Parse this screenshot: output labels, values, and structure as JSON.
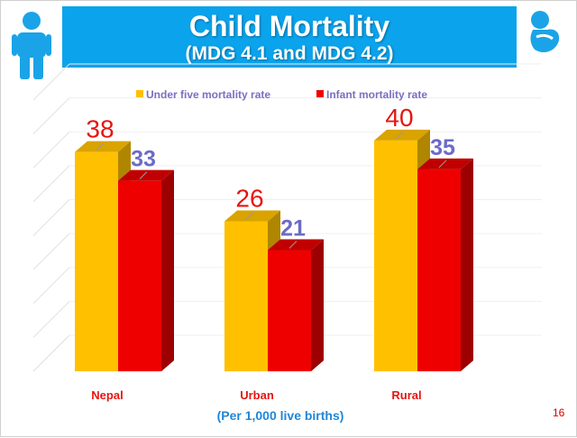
{
  "slide": {
    "title": "Child Mortality",
    "subtitle": "(MDG 4.1  and MDG 4.2)",
    "footnote": "(Per 1,000 live births)",
    "page_number": "16",
    "icons": [
      "child-icon",
      "infant-icon"
    ]
  },
  "chart_data": {
    "type": "bar",
    "title": "Child Mortality",
    "categories": [
      "Nepal",
      "Urban",
      "Rural"
    ],
    "series": [
      {
        "name": "Under five mortality rate",
        "values": [
          38,
          26,
          40
        ],
        "color": "#ffc000",
        "side_color": "#b08600",
        "top_color": "#d9a300",
        "label_color": "#e8140f"
      },
      {
        "name": "Infant mortality rate",
        "values": [
          33,
          21,
          35
        ],
        "color": "#ee0000",
        "side_color": "#9c0000",
        "top_color": "#c00000",
        "label_color": "#6b6bc8"
      }
    ],
    "xlabel": "(Per 1,000 live births)",
    "ylabel": "",
    "ylim": [
      0,
      47
    ],
    "grid": true,
    "legend": "top"
  },
  "colors": {
    "banner": "#0aa3ec",
    "category_label": "#e8140f",
    "legend_text": "#7a6fc4",
    "icon": "#1ba3e8"
  }
}
